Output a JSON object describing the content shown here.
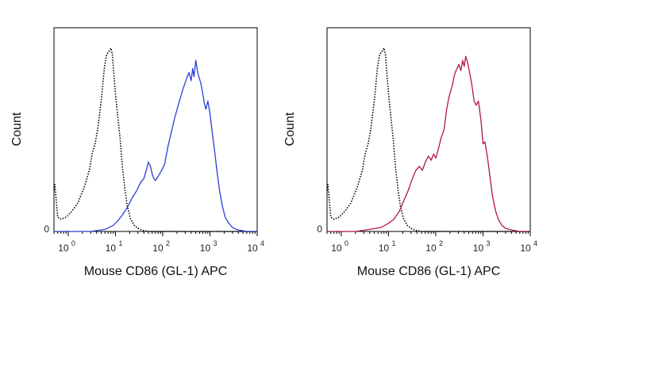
{
  "chart_data": [
    {
      "type": "line",
      "xscale": "log",
      "xlim": [
        0.5,
        10000
      ],
      "ylim": [
        0,
        1.0
      ],
      "xlabel": "Mouse CD86 (GL-1) APC",
      "ylabel": "Count",
      "y_tick_label": "0",
      "x_ticks": [
        {
          "base": "10",
          "exp": "0",
          "value": 1
        },
        {
          "base": "10",
          "exp": "1",
          "value": 10
        },
        {
          "base": "10",
          "exp": "2",
          "value": 100
        },
        {
          "base": "10",
          "exp": "3",
          "value": 1000
        },
        {
          "base": "10",
          "exp": "4",
          "value": 10000
        }
      ],
      "grid": false,
      "series": [
        {
          "color": "#000000",
          "style": "dotted",
          "x": [
            0.5,
            0.52,
            0.56,
            0.6,
            0.7,
            0.9,
            1.2,
            1.6,
            2.2,
            2.8,
            3.2,
            3.7,
            4.2,
            5.0,
            5.8,
            6.5,
            7.2,
            8.0,
            8.6,
            9.2,
            10.0,
            11.0,
            12.5,
            14.0,
            16.0,
            18.0,
            21.0,
            25.0,
            30.0,
            38.0,
            50.0,
            70.0,
            100.0,
            10000.0
          ],
          "y": [
            0.2,
            0.23,
            0.15,
            0.07,
            0.06,
            0.07,
            0.1,
            0.14,
            0.22,
            0.3,
            0.38,
            0.43,
            0.5,
            0.64,
            0.8,
            0.87,
            0.88,
            0.9,
            0.87,
            0.78,
            0.68,
            0.58,
            0.46,
            0.32,
            0.2,
            0.12,
            0.06,
            0.03,
            0.015,
            0.005,
            0.0,
            0.0,
            0.0,
            0.0
          ]
        },
        {
          "color": "#2a3ed8",
          "style": "solid",
          "x": [
            0.5,
            1.0,
            3.0,
            6.0,
            9.0,
            11.0,
            14.0,
            18.0,
            22.0,
            28.0,
            34.0,
            40.0,
            46.0,
            50.0,
            55.0,
            60.0,
            65.0,
            70.0,
            80.0,
            95.0,
            110.0,
            130.0,
            150.0,
            180.0,
            220.0,
            270.0,
            320.0,
            360.0,
            400.0,
            430.0,
            460.0,
            500.0,
            540.0,
            580.0,
            640.0,
            700.0,
            760.0,
            820.0,
            900.0,
            1000.0,
            1100.0,
            1250.0,
            1400.0,
            1600.0,
            1850.0,
            2100.0,
            2500.0,
            3000.0,
            3600.0,
            4500.0,
            6000.0,
            8000.0,
            10000.0
          ],
          "y": [
            0.0,
            0.0,
            0.0,
            0.01,
            0.03,
            0.05,
            0.08,
            0.12,
            0.16,
            0.2,
            0.24,
            0.26,
            0.31,
            0.34,
            0.32,
            0.28,
            0.26,
            0.25,
            0.27,
            0.3,
            0.33,
            0.42,
            0.48,
            0.56,
            0.63,
            0.7,
            0.75,
            0.78,
            0.74,
            0.8,
            0.76,
            0.84,
            0.79,
            0.76,
            0.73,
            0.68,
            0.63,
            0.6,
            0.64,
            0.58,
            0.5,
            0.4,
            0.3,
            0.2,
            0.12,
            0.07,
            0.04,
            0.02,
            0.01,
            0.005,
            0.0,
            0.0,
            0.0
          ]
        }
      ]
    },
    {
      "type": "line",
      "xscale": "log",
      "xlim": [
        0.5,
        10000
      ],
      "ylim": [
        0,
        1.0
      ],
      "xlabel": "Mouse CD86 (GL-1) APC",
      "ylabel": "Count",
      "y_tick_label": "0",
      "x_ticks": [
        {
          "base": "10",
          "exp": "0",
          "value": 1
        },
        {
          "base": "10",
          "exp": "1",
          "value": 10
        },
        {
          "base": "10",
          "exp": "2",
          "value": 100
        },
        {
          "base": "10",
          "exp": "3",
          "value": 1000
        },
        {
          "base": "10",
          "exp": "4",
          "value": 10000
        }
      ],
      "grid": false,
      "series": [
        {
          "color": "#000000",
          "style": "dotted",
          "x": [
            0.5,
            0.52,
            0.56,
            0.6,
            0.7,
            0.9,
            1.2,
            1.6,
            2.2,
            2.8,
            3.2,
            3.7,
            4.2,
            5.0,
            5.8,
            6.5,
            7.2,
            8.0,
            8.6,
            9.2,
            10.0,
            11.0,
            12.5,
            14.0,
            16.0,
            18.0,
            21.0,
            25.0,
            30.0,
            38.0,
            50.0,
            70.0,
            100.0,
            10000.0
          ],
          "y": [
            0.2,
            0.23,
            0.15,
            0.07,
            0.06,
            0.07,
            0.1,
            0.14,
            0.22,
            0.3,
            0.38,
            0.43,
            0.5,
            0.64,
            0.8,
            0.87,
            0.88,
            0.9,
            0.87,
            0.78,
            0.68,
            0.58,
            0.46,
            0.32,
            0.2,
            0.12,
            0.06,
            0.03,
            0.015,
            0.005,
            0.0,
            0.0,
            0.0,
            0.0
          ]
        },
        {
          "color": "#b0154f",
          "style": "solid",
          "x": [
            0.5,
            1.0,
            2.0,
            4.0,
            7.0,
            10.0,
            13.0,
            17.0,
            21.0,
            26.0,
            32.0,
            38.0,
            45.0,
            52.0,
            60.0,
            70.0,
            80.0,
            90.0,
            100.0,
            115.0,
            130.0,
            150.0,
            170.0,
            190.0,
            220.0,
            250.0,
            280.0,
            310.0,
            340.0,
            370.0,
            400.0,
            430.0,
            470.0,
            520.0,
            580.0,
            650.0,
            720.0,
            800.0,
            900.0,
            1000.0,
            1100.0,
            1250.0,
            1400.0,
            1600.0,
            1850.0,
            2100.0,
            2500.0,
            3000.0,
            3600.0,
            4500.0,
            6000.0,
            8000.0,
            10000.0
          ],
          "y": [
            0.0,
            0.0,
            0.0,
            0.01,
            0.02,
            0.04,
            0.06,
            0.1,
            0.15,
            0.2,
            0.26,
            0.3,
            0.32,
            0.3,
            0.34,
            0.37,
            0.35,
            0.38,
            0.36,
            0.41,
            0.46,
            0.5,
            0.6,
            0.66,
            0.71,
            0.77,
            0.8,
            0.82,
            0.79,
            0.84,
            0.81,
            0.86,
            0.83,
            0.78,
            0.72,
            0.64,
            0.62,
            0.64,
            0.55,
            0.43,
            0.44,
            0.36,
            0.27,
            0.17,
            0.1,
            0.06,
            0.03,
            0.015,
            0.01,
            0.005,
            0.0,
            0.0,
            0.0
          ]
        }
      ]
    }
  ]
}
